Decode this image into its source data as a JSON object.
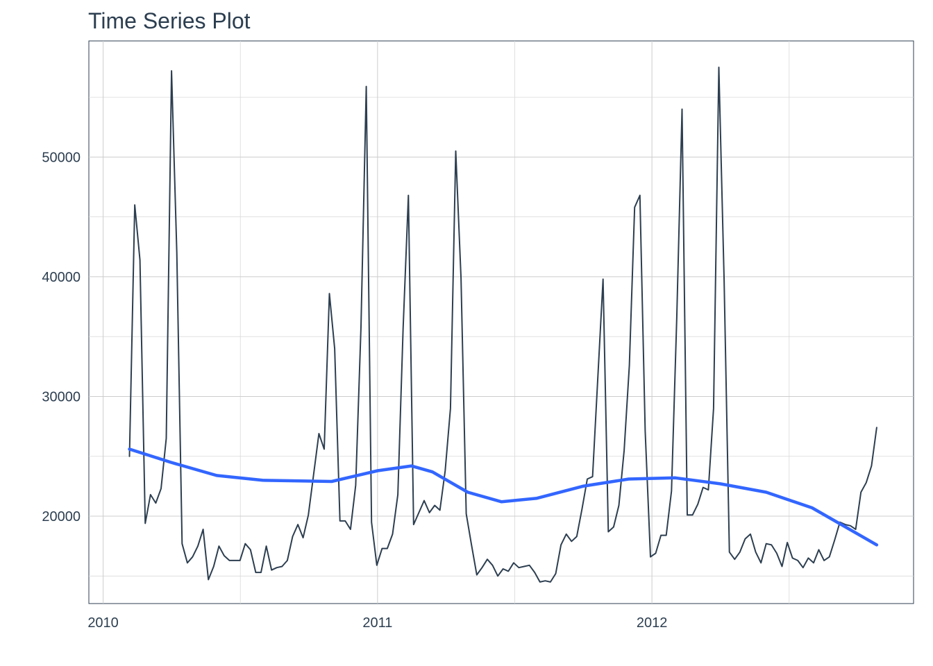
{
  "chart_data": {
    "type": "line",
    "title": "Time Series Plot",
    "xlabel": "",
    "ylabel": "",
    "grid": true,
    "x_axis": {
      "type": "date",
      "ticks": [
        "2010-01-01",
        "2011-01-01",
        "2012-01-01"
      ],
      "tick_labels": [
        "2010",
        "2011",
        "2012"
      ],
      "range": [
        "2009-12-13",
        "2012-12-14"
      ]
    },
    "y_axis": {
      "ticks": [
        20000,
        30000,
        40000,
        50000
      ],
      "tick_labels": [
        "20000",
        "30000",
        "40000",
        "50000"
      ],
      "range": [
        12700,
        59700
      ]
    },
    "colors": {
      "series": "#2c3e50",
      "smooth": "#3366ff"
    },
    "series": [
      {
        "values": [
          [
            "2010-02-05",
            25000
          ],
          [
            "2010-02-12",
            46000
          ],
          [
            "2010-02-19",
            41400
          ],
          [
            "2010-02-26",
            19400
          ],
          [
            "2010-03-05",
            21800
          ],
          [
            "2010-03-12",
            21100
          ],
          [
            "2010-03-19",
            22300
          ],
          [
            "2010-03-26",
            26500
          ],
          [
            "2010-04-02",
            57200
          ],
          [
            "2010-04-09",
            42000
          ],
          [
            "2010-04-16",
            17700
          ],
          [
            "2010-04-23",
            16100
          ],
          [
            "2010-04-30",
            16600
          ],
          [
            "2010-05-07",
            17500
          ],
          [
            "2010-05-14",
            18900
          ],
          [
            "2010-05-21",
            14700
          ],
          [
            "2010-05-28",
            15800
          ],
          [
            "2010-06-04",
            17500
          ],
          [
            "2010-06-11",
            16700
          ],
          [
            "2010-06-18",
            16300
          ],
          [
            "2010-06-25",
            16300
          ],
          [
            "2010-07-02",
            16300
          ],
          [
            "2010-07-09",
            17700
          ],
          [
            "2010-07-16",
            17200
          ],
          [
            "2010-07-23",
            15300
          ],
          [
            "2010-07-30",
            15300
          ],
          [
            "2010-08-06",
            17500
          ],
          [
            "2010-08-13",
            15500
          ],
          [
            "2010-08-20",
            15700
          ],
          [
            "2010-08-27",
            15800
          ],
          [
            "2010-09-03",
            16300
          ],
          [
            "2010-09-10",
            18300
          ],
          [
            "2010-09-17",
            19300
          ],
          [
            "2010-09-24",
            18200
          ],
          [
            "2010-10-01",
            20100
          ],
          [
            "2010-10-08",
            23500
          ],
          [
            "2010-10-15",
            26900
          ],
          [
            "2010-10-22",
            25600
          ],
          [
            "2010-10-29",
            38600
          ],
          [
            "2010-11-05",
            34000
          ],
          [
            "2010-11-12",
            19600
          ],
          [
            "2010-11-19",
            19600
          ],
          [
            "2010-11-26",
            18900
          ],
          [
            "2010-12-03",
            22600
          ],
          [
            "2010-12-10",
            35800
          ],
          [
            "2010-12-17",
            55900
          ],
          [
            "2010-12-24",
            19500
          ],
          [
            "2010-12-31",
            15900
          ],
          [
            "2011-01-07",
            17300
          ],
          [
            "2011-01-14",
            17300
          ],
          [
            "2011-01-21",
            18500
          ],
          [
            "2011-01-28",
            21800
          ],
          [
            "2011-02-04",
            35700
          ],
          [
            "2011-02-11",
            46800
          ],
          [
            "2011-02-18",
            19300
          ],
          [
            "2011-02-25",
            20300
          ],
          [
            "2011-03-04",
            21300
          ],
          [
            "2011-03-11",
            20300
          ],
          [
            "2011-03-18",
            20900
          ],
          [
            "2011-03-25",
            20500
          ],
          [
            "2011-04-01",
            23800
          ],
          [
            "2011-04-08",
            29000
          ],
          [
            "2011-04-15",
            50500
          ],
          [
            "2011-04-22",
            39900
          ],
          [
            "2011-04-29",
            20200
          ],
          [
            "2011-05-06",
            17600
          ],
          [
            "2011-05-13",
            15100
          ],
          [
            "2011-05-20",
            15700
          ],
          [
            "2011-05-27",
            16400
          ],
          [
            "2011-06-03",
            15900
          ],
          [
            "2011-06-10",
            15000
          ],
          [
            "2011-06-17",
            15600
          ],
          [
            "2011-06-24",
            15400
          ],
          [
            "2011-07-01",
            16100
          ],
          [
            "2011-07-08",
            15700
          ],
          [
            "2011-07-15",
            15800
          ],
          [
            "2011-07-22",
            15900
          ],
          [
            "2011-07-29",
            15300
          ],
          [
            "2011-08-05",
            14500
          ],
          [
            "2011-08-12",
            14600
          ],
          [
            "2011-08-19",
            14500
          ],
          [
            "2011-08-26",
            15200
          ],
          [
            "2011-09-02",
            17600
          ],
          [
            "2011-09-09",
            18500
          ],
          [
            "2011-09-16",
            17900
          ],
          [
            "2011-09-23",
            18300
          ],
          [
            "2011-09-30",
            20600
          ],
          [
            "2011-10-07",
            23100
          ],
          [
            "2011-10-14",
            23300
          ],
          [
            "2011-10-21",
            31600
          ],
          [
            "2011-10-28",
            39800
          ],
          [
            "2011-11-04",
            18700
          ],
          [
            "2011-11-11",
            19100
          ],
          [
            "2011-11-18",
            20900
          ],
          [
            "2011-11-25",
            25500
          ],
          [
            "2011-12-02",
            32600
          ],
          [
            "2011-12-09",
            45800
          ],
          [
            "2011-12-16",
            46800
          ],
          [
            "2011-12-23",
            27100
          ],
          [
            "2011-12-30",
            16600
          ],
          [
            "2012-01-06",
            16900
          ],
          [
            "2012-01-13",
            18400
          ],
          [
            "2012-01-20",
            18400
          ],
          [
            "2012-01-27",
            22100
          ],
          [
            "2012-02-03",
            36600
          ],
          [
            "2012-02-10",
            54000
          ],
          [
            "2012-02-17",
            20100
          ],
          [
            "2012-02-24",
            20100
          ],
          [
            "2012-03-02",
            21000
          ],
          [
            "2012-03-09",
            22400
          ],
          [
            "2012-03-16",
            22200
          ],
          [
            "2012-03-23",
            29000
          ],
          [
            "2012-03-30",
            57500
          ],
          [
            "2012-04-06",
            39700
          ],
          [
            "2012-04-13",
            17000
          ],
          [
            "2012-04-20",
            16400
          ],
          [
            "2012-04-27",
            17000
          ],
          [
            "2012-05-04",
            18100
          ],
          [
            "2012-05-11",
            18500
          ],
          [
            "2012-05-18",
            17000
          ],
          [
            "2012-05-25",
            16100
          ],
          [
            "2012-06-01",
            17700
          ],
          [
            "2012-06-08",
            17600
          ],
          [
            "2012-06-15",
            16900
          ],
          [
            "2012-06-22",
            15800
          ],
          [
            "2012-06-29",
            17800
          ],
          [
            "2012-07-06",
            16500
          ],
          [
            "2012-07-13",
            16300
          ],
          [
            "2012-07-20",
            15700
          ],
          [
            "2012-07-27",
            16500
          ],
          [
            "2012-08-03",
            16100
          ],
          [
            "2012-08-10",
            17200
          ],
          [
            "2012-08-17",
            16300
          ],
          [
            "2012-08-24",
            16600
          ],
          [
            "2012-08-31",
            18000
          ],
          [
            "2012-09-07",
            19500
          ],
          [
            "2012-09-14",
            19300
          ],
          [
            "2012-09-21",
            19200
          ],
          [
            "2012-09-28",
            18900
          ],
          [
            "2012-10-05",
            22000
          ],
          [
            "2012-10-12",
            22800
          ],
          [
            "2012-10-19",
            24200
          ],
          [
            "2012-10-26",
            27400
          ]
        ]
      },
      {
        "values": [
          [
            "2010-02-05",
            25600
          ],
          [
            "2010-04-01",
            24500
          ],
          [
            "2010-06-01",
            23400
          ],
          [
            "2010-08-01",
            23000
          ],
          [
            "2010-11-01",
            22900
          ],
          [
            "2011-01-01",
            23800
          ],
          [
            "2011-02-15",
            24200
          ],
          [
            "2011-03-15",
            23700
          ],
          [
            "2011-05-01",
            22000
          ],
          [
            "2011-06-15",
            21200
          ],
          [
            "2011-08-01",
            21500
          ],
          [
            "2011-10-01",
            22500
          ],
          [
            "2011-12-01",
            23100
          ],
          [
            "2012-02-01",
            23200
          ],
          [
            "2012-04-01",
            22700
          ],
          [
            "2012-06-01",
            22000
          ],
          [
            "2012-08-01",
            20700
          ],
          [
            "2012-10-26",
            17600
          ]
        ]
      }
    ]
  }
}
